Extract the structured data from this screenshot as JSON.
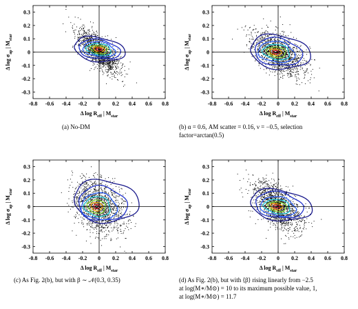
{
  "chart_data": [
    {
      "type": "scatter",
      "panel": "a",
      "title": "",
      "xlabel": "Δ log R_eff | M_star",
      "ylabel": "Δ log σ_ap | M_star",
      "xlim": [
        -0.8,
        0.8
      ],
      "ylim": [
        -0.35,
        0.35
      ],
      "x_ticks": [
        "-0.8",
        "-0.6",
        "-0.4",
        "-0.2",
        "0",
        "0.2",
        "0.4",
        "0.6",
        "0.8"
      ],
      "y_ticks": [
        "0.3",
        "0.2",
        "0.1",
        "0",
        "-0.1",
        "-0.2",
        "-0.3"
      ],
      "grid": false,
      "reference_lines": {
        "x": 0,
        "y": 0
      },
      "scatter": {
        "n_points": 1400,
        "x_mean": 0.0,
        "x_std": 0.12,
        "y_mean": 0.0,
        "y_std": 0.08,
        "corr": -0.72,
        "color": "#000000"
      },
      "contours": [
        {
          "level": 1,
          "color": "#1a1a8c",
          "cx": 0.0,
          "cy": 0.02,
          "rx": 0.33,
          "ry": 0.095,
          "angle": -22
        },
        {
          "level": 2,
          "color": "#2233cc",
          "cx": 0.0,
          "cy": 0.02,
          "rx": 0.27,
          "ry": 0.075,
          "angle": -22
        },
        {
          "level": 3,
          "color": "#3366ff",
          "cx": 0.0,
          "cy": 0.02,
          "rx": 0.21,
          "ry": 0.058,
          "angle": -22
        },
        {
          "level": 4,
          "color": "#22ccdd",
          "cx": 0.0,
          "cy": 0.02,
          "rx": 0.16,
          "ry": 0.045,
          "angle": -22
        },
        {
          "level": 5,
          "color": "#88dd33",
          "cx": 0.0,
          "cy": 0.02,
          "rx": 0.11,
          "ry": 0.032,
          "angle": -22
        },
        {
          "level": 6,
          "color": "#ffaa00",
          "cx": 0.0,
          "cy": 0.02,
          "rx": 0.07,
          "ry": 0.02,
          "angle": -22
        },
        {
          "level": 7,
          "color": "#dd2222",
          "cx": 0.0,
          "cy": 0.02,
          "rx": 0.035,
          "ry": 0.01,
          "angle": -22
        }
      ]
    },
    {
      "type": "scatter",
      "panel": "b",
      "title": "",
      "xlabel": "Δ log R_eff | M_star",
      "ylabel": "Δ log σ_ap | M_star",
      "xlim": [
        -0.8,
        0.8
      ],
      "ylim": [
        -0.35,
        0.35
      ],
      "x_ticks": [
        "-0.8",
        "-0.6",
        "-0.4",
        "-0.2",
        "0",
        "0.2",
        "0.4",
        "0.6",
        "0.8"
      ],
      "y_ticks": [
        "0.3",
        "0.2",
        "0.1",
        "0",
        "-0.1",
        "-0.2",
        "-0.3"
      ],
      "grid": false,
      "reference_lines": {
        "x": 0,
        "y": 0
      },
      "scatter": {
        "n_points": 1400,
        "x_mean": 0.0,
        "x_std": 0.15,
        "y_mean": -0.01,
        "y_std": 0.08,
        "corr": -0.5,
        "color": "#000000"
      },
      "contours": [
        {
          "level": 1,
          "color": "#1a1a8c",
          "cx": 0.02,
          "cy": 0.0,
          "rx": 0.38,
          "ry": 0.13,
          "angle": -18
        },
        {
          "level": 2,
          "color": "#2233cc",
          "cx": 0.0,
          "cy": 0.0,
          "rx": 0.3,
          "ry": 0.105,
          "angle": -18
        },
        {
          "level": 3,
          "color": "#3366ff",
          "cx": -0.02,
          "cy": 0.0,
          "rx": 0.23,
          "ry": 0.08,
          "angle": -18
        },
        {
          "level": 4,
          "color": "#22ccdd",
          "cx": -0.02,
          "cy": 0.0,
          "rx": 0.17,
          "ry": 0.058,
          "angle": -18
        },
        {
          "level": 5,
          "color": "#88dd33",
          "cx": -0.02,
          "cy": 0.0,
          "rx": 0.12,
          "ry": 0.04,
          "angle": -18
        },
        {
          "level": 6,
          "color": "#ffaa00",
          "cx": -0.03,
          "cy": 0.0,
          "rx": 0.075,
          "ry": 0.025,
          "angle": -18
        },
        {
          "level": 7,
          "color": "#dd2222",
          "cx": -0.03,
          "cy": 0.0,
          "rx": 0.04,
          "ry": 0.013,
          "angle": -18
        }
      ]
    },
    {
      "type": "scatter",
      "panel": "c",
      "title": "",
      "xlabel": "Δ log R_eff | M_star",
      "ylabel": "Δ log σ_ap | M_star",
      "xlim": [
        -0.8,
        0.8
      ],
      "ylim": [
        -0.35,
        0.35
      ],
      "x_ticks": [
        "-0.8",
        "-0.6",
        "-0.4",
        "-0.2",
        "0",
        "0.2",
        "0.4",
        "0.6",
        "0.8"
      ],
      "y_ticks": [
        "0.3",
        "0.2",
        "0.1",
        "0",
        "-0.1",
        "-0.2",
        "-0.3"
      ],
      "grid": false,
      "reference_lines": {
        "x": 0,
        "y": 0
      },
      "scatter": {
        "n_points": 1400,
        "x_mean": 0.0,
        "x_std": 0.15,
        "y_mean": 0.0,
        "y_std": 0.1,
        "corr": -0.3,
        "color": "#000000"
      },
      "contours": [
        {
          "level": 1,
          "color": "#1a1a8c",
          "cx": 0.08,
          "cy": 0.04,
          "rx": 0.4,
          "ry": 0.16,
          "angle": -12
        },
        {
          "level": 2,
          "color": "#2233cc",
          "cx": 0.04,
          "cy": 0.02,
          "rx": 0.3,
          "ry": 0.13,
          "angle": -12
        },
        {
          "level": 3,
          "color": "#3366ff",
          "cx": 0.0,
          "cy": 0.0,
          "rx": 0.22,
          "ry": 0.1,
          "angle": -12
        },
        {
          "level": 4,
          "color": "#22ccdd",
          "cx": -0.02,
          "cy": 0.0,
          "rx": 0.16,
          "ry": 0.075,
          "angle": -12
        },
        {
          "level": 5,
          "color": "#88dd33",
          "cx": -0.03,
          "cy": 0.0,
          "rx": 0.11,
          "ry": 0.05,
          "angle": -12
        },
        {
          "level": 6,
          "color": "#ffaa00",
          "cx": -0.03,
          "cy": 0.0,
          "rx": 0.07,
          "ry": 0.032,
          "angle": -12
        },
        {
          "level": 7,
          "color": "#dd2222",
          "cx": -0.03,
          "cy": 0.0,
          "rx": 0.035,
          "ry": 0.016,
          "angle": -12
        }
      ]
    },
    {
      "type": "scatter",
      "panel": "d",
      "title": "",
      "xlabel": "Δ log R_eff | M_star",
      "ylabel": "Δ log σ_ap | M_star",
      "xlim": [
        -0.8,
        0.8
      ],
      "ylim": [
        -0.35,
        0.35
      ],
      "x_ticks": [
        "-0.8",
        "-0.6",
        "-0.4",
        "-0.2",
        "0",
        "0.2",
        "0.4",
        "0.6",
        "0.8"
      ],
      "y_ticks": [
        "0.3",
        "0.2",
        "0.1",
        "0",
        "-0.1",
        "-0.2",
        "-0.3"
      ],
      "grid": false,
      "reference_lines": {
        "x": 0,
        "y": 0
      },
      "scatter": {
        "n_points": 1400,
        "x_mean": 0.0,
        "x_std": 0.14,
        "y_mean": 0.0,
        "y_std": 0.09,
        "corr": -0.55,
        "color": "#000000"
      },
      "contours": [
        {
          "level": 1,
          "color": "#1a1a8c",
          "cx": 0.03,
          "cy": 0.01,
          "rx": 0.4,
          "ry": 0.12,
          "angle": -22
        },
        {
          "level": 2,
          "color": "#2233cc",
          "cx": 0.01,
          "cy": 0.01,
          "rx": 0.31,
          "ry": 0.1,
          "angle": -22
        },
        {
          "level": 3,
          "color": "#3366ff",
          "cx": 0.0,
          "cy": 0.0,
          "rx": 0.23,
          "ry": 0.075,
          "angle": -22
        },
        {
          "level": 4,
          "color": "#22ccdd",
          "cx": -0.01,
          "cy": 0.0,
          "rx": 0.17,
          "ry": 0.055,
          "angle": -22
        },
        {
          "level": 5,
          "color": "#88dd33",
          "cx": -0.01,
          "cy": 0.0,
          "rx": 0.12,
          "ry": 0.038,
          "angle": -22
        },
        {
          "level": 6,
          "color": "#ffaa00",
          "cx": -0.02,
          "cy": 0.0,
          "rx": 0.075,
          "ry": 0.024,
          "angle": -22
        },
        {
          "level": 7,
          "color": "#dd2222",
          "cx": -0.02,
          "cy": 0.0,
          "rx": 0.04,
          "ry": 0.012,
          "angle": -22
        }
      ]
    }
  ],
  "captions": {
    "a": "(a) No-DM",
    "b": "(b) α = 0.6, AM scatter = 0.16, ν = −0.5, selection\nfactor=arctan(0.5)",
    "c": "(c) As Fig. 2(b), but with β ∼ 𝒩(0.3, 0.35)",
    "d": "(d) As Fig. 2(b), but with ⟨β⟩ rising linearly from −2.5\nat log(M∗/M⊙) = 10 to its maximum possible value, 1,\nat log(M∗/M⊙) = 11.7"
  }
}
